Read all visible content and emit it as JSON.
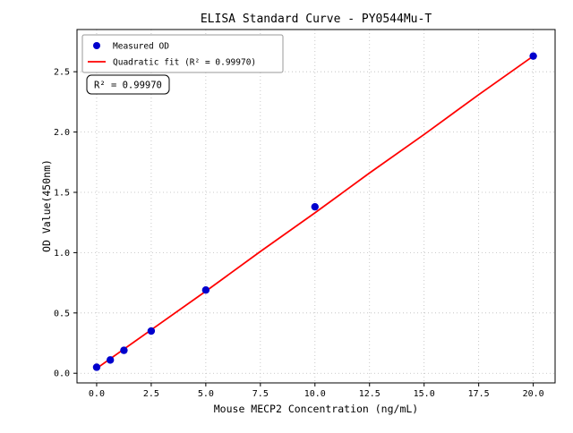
{
  "chart_data": {
    "type": "scatter",
    "title": "ELISA Standard Curve - PY0544Mu-T",
    "xlabel": "Mouse MECP2 Concentration (ng/mL)",
    "ylabel": "OD Value(450nm)",
    "xlim": [
      -0.9,
      21.0
    ],
    "ylim": [
      -0.08,
      2.85
    ],
    "xticks": [
      0.0,
      2.5,
      5.0,
      7.5,
      10.0,
      12.5,
      15.0,
      17.5,
      20.0
    ],
    "xtick_labels": [
      "0.0",
      "2.5",
      "5.0",
      "7.5",
      "10.0",
      "12.5",
      "15.0",
      "17.5",
      "20.0"
    ],
    "yticks": [
      0.0,
      0.5,
      1.0,
      1.5,
      2.0,
      2.5
    ],
    "ytick_labels": [
      "0.0",
      "0.5",
      "1.0",
      "1.5",
      "2.0",
      "2.5"
    ],
    "grid": true,
    "background": "#ffffff",
    "legend_position": "upper-left",
    "legend": [
      {
        "label": "Measured OD",
        "marker": "dot",
        "color": "#0000cd"
      },
      {
        "label": "Quadratic fit (R² = 0.99970)",
        "marker": "line",
        "color": "#ff0000"
      }
    ],
    "annotation": "R² = 0.99970",
    "series": [
      {
        "name": "Quadratic fit",
        "type": "line",
        "color": "#ff0000",
        "x": [
          0,
          2.5,
          5,
          7.5,
          10,
          12.5,
          15,
          17.5,
          20
        ],
        "y": [
          0.04,
          0.36,
          0.68,
          1.01,
          1.33,
          1.66,
          1.98,
          2.31,
          2.63
        ]
      },
      {
        "name": "Measured OD",
        "type": "scatter",
        "color": "#0000cd",
        "x": [
          0,
          0.625,
          1.25,
          2.5,
          5,
          10,
          20
        ],
        "y": [
          0.05,
          0.11,
          0.19,
          0.35,
          0.69,
          1.38,
          2.63
        ]
      }
    ]
  }
}
